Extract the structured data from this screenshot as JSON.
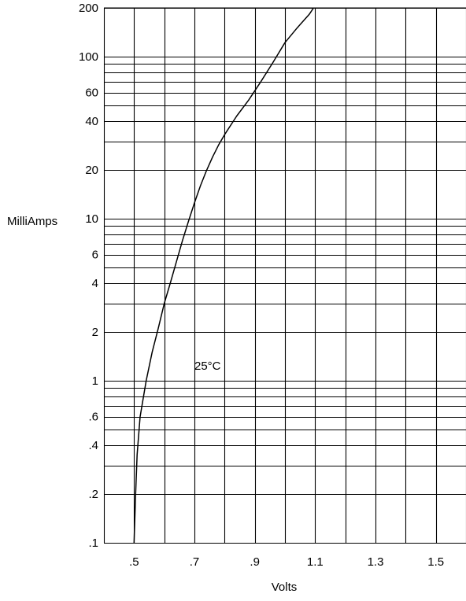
{
  "chart_data": {
    "type": "line",
    "xlabel": "Volts",
    "ylabel": "MilliAmps",
    "annotation": "25°C",
    "xlim": [
      0.4,
      1.6
    ],
    "ylim": [
      0.1,
      200
    ],
    "yscale": "log",
    "grid": true,
    "x_ticks": [
      {
        "value": 0.5,
        "label": ".5"
      },
      {
        "value": 0.7,
        "label": ".7"
      },
      {
        "value": 0.9,
        "label": ".9"
      },
      {
        "value": 1.1,
        "label": "1.1"
      },
      {
        "value": 1.3,
        "label": "1.3"
      },
      {
        "value": 1.5,
        "label": "1.5"
      }
    ],
    "y_ticks": [
      {
        "value": 0.1,
        "label": ".1"
      },
      {
        "value": 0.2,
        "label": ".2"
      },
      {
        "value": 0.4,
        "label": ".4"
      },
      {
        "value": 0.6,
        "label": ".6"
      },
      {
        "value": 1,
        "label": "1"
      },
      {
        "value": 2,
        "label": "2"
      },
      {
        "value": 4,
        "label": "4"
      },
      {
        "value": 6,
        "label": "6"
      },
      {
        "value": 10,
        "label": "10"
      },
      {
        "value": 20,
        "label": "20"
      },
      {
        "value": 40,
        "label": "40"
      },
      {
        "value": 60,
        "label": "60"
      },
      {
        "value": 100,
        "label": "100"
      },
      {
        "value": 200,
        "label": "200"
      }
    ],
    "series": [
      {
        "x": [
          0.5,
          0.505,
          0.51,
          0.52,
          0.54,
          0.56,
          0.58,
          0.6,
          0.62,
          0.64,
          0.66,
          0.68,
          0.7,
          0.72,
          0.74,
          0.76,
          0.78,
          0.8,
          0.84,
          0.88,
          0.92,
          0.96,
          1.0,
          1.04,
          1.08,
          1.095
        ],
        "y": [
          0.1,
          0.2,
          0.35,
          0.6,
          1.0,
          1.5,
          2.1,
          3.0,
          4.0,
          5.4,
          7.3,
          9.6,
          12.5,
          16.0,
          19.8,
          24.0,
          28.5,
          33.0,
          43.0,
          54.0,
          70.0,
          92.0,
          122.0,
          150.0,
          182.0,
          200.0
        ]
      }
    ]
  }
}
